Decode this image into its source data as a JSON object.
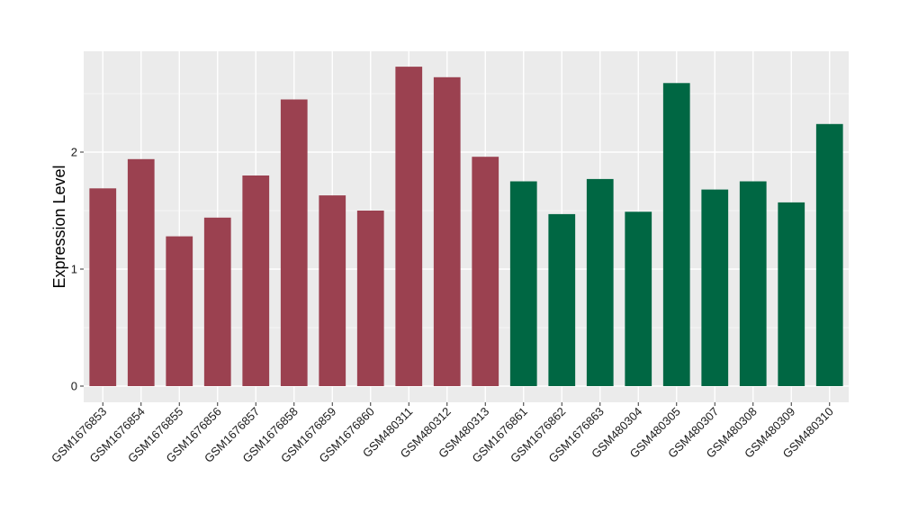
{
  "chart_data": {
    "type": "bar",
    "title": "",
    "xlabel": "",
    "ylabel": "Expression Level",
    "ylim": [
      0,
      2.85
    ],
    "yticks": [
      0,
      1,
      2
    ],
    "grid": true,
    "legend": "none",
    "colors": {
      "group1": "#9b4150",
      "group2": "#006743",
      "panel": "#ebebeb",
      "gridline": "#ffffff"
    },
    "categories": [
      "GSM1676853",
      "GSM1676854",
      "GSM1676855",
      "GSM1676856",
      "GSM1676857",
      "GSM1676858",
      "GSM1676859",
      "GSM1676860",
      "GSM480311",
      "GSM480312",
      "GSM480313",
      "GSM1676861",
      "GSM1676862",
      "GSM1676863",
      "GSM480304",
      "GSM480305",
      "GSM480307",
      "GSM480308",
      "GSM480309",
      "GSM480310"
    ],
    "values": [
      1.69,
      1.94,
      1.28,
      1.44,
      1.8,
      2.45,
      1.63,
      1.5,
      2.73,
      2.64,
      1.96,
      1.75,
      1.47,
      1.77,
      1.49,
      2.59,
      1.68,
      1.75,
      1.57,
      2.24
    ],
    "groups": [
      1,
      1,
      1,
      1,
      1,
      1,
      1,
      1,
      1,
      1,
      1,
      2,
      2,
      2,
      2,
      2,
      2,
      2,
      2,
      2
    ]
  }
}
